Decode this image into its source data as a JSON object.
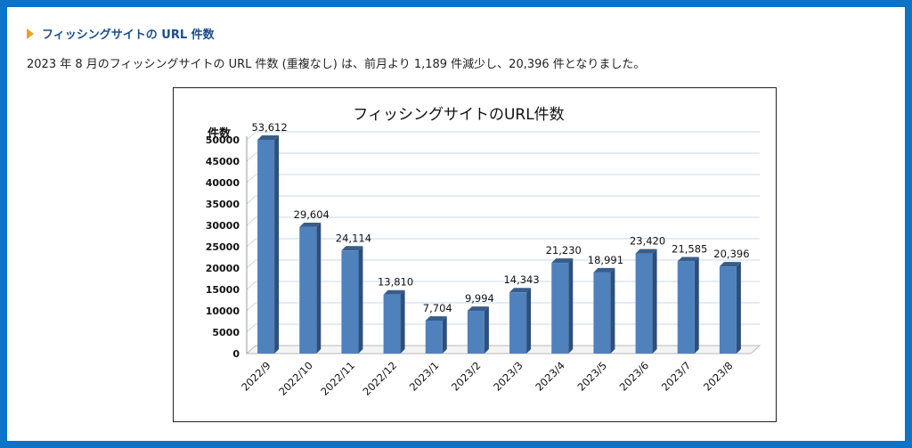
{
  "header": {
    "title": "フィッシングサイトの URL 件数"
  },
  "description": "2023 年 8 月のフィッシングサイトの URL 件数 (重複なし) は、前月より 1,189 件減少し、20,396 件となりました。",
  "chart_data": {
    "type": "bar",
    "title": "フィッシングサイトのURL件数",
    "ylabel": "件数",
    "xlabel": "",
    "categories": [
      "2022/9",
      "2022/10",
      "2022/11",
      "2022/12",
      "2023/1",
      "2023/2",
      "2023/3",
      "2023/4",
      "2023/5",
      "2023/6",
      "2023/7",
      "2023/8"
    ],
    "values": [
      53612,
      29604,
      24114,
      13810,
      7704,
      9994,
      14343,
      21230,
      18991,
      23420,
      21585,
      20396
    ],
    "value_labels": [
      "53,612",
      "29,604",
      "24,114",
      "13,810",
      "7,704",
      "9,994",
      "14,343",
      "21,230",
      "18,991",
      "23,420",
      "21,585",
      "20,396"
    ],
    "ylim": [
      0,
      50000
    ],
    "yticks": [
      0,
      5000,
      10000,
      15000,
      20000,
      25000,
      30000,
      35000,
      40000,
      45000,
      50000
    ],
    "grid": true,
    "legend": "none",
    "colors": {
      "bar_front": "#4f81bd",
      "bar_side": "#2c4f7c",
      "bar_top": "#385d8a",
      "grid": "#c6d9f1"
    }
  }
}
